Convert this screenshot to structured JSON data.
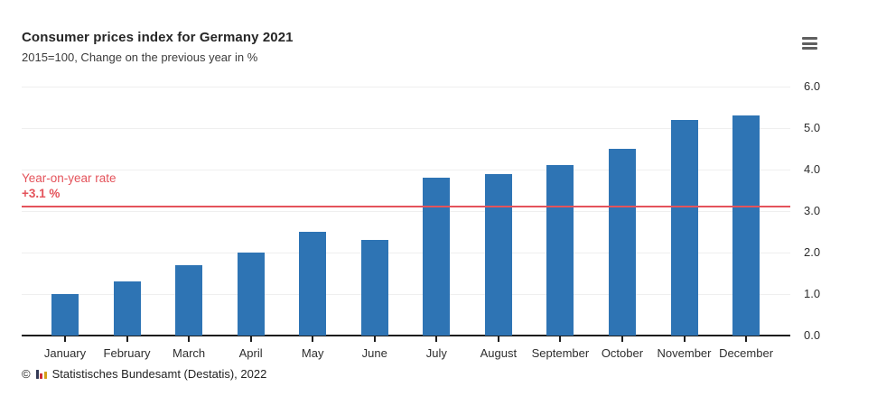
{
  "header": {
    "title": "Consumer prices index for Germany 2021",
    "subtitle": "2015=100, Change on the previous year in %",
    "menu_icon": "hamburger-menu-icon"
  },
  "chart_data": {
    "type": "bar",
    "title": "Consumer prices index for Germany 2021",
    "subtitle": "2015=100, Change on the previous year in %",
    "categories": [
      "January",
      "February",
      "March",
      "April",
      "May",
      "June",
      "July",
      "August",
      "September",
      "October",
      "November",
      "December"
    ],
    "values": [
      1.0,
      1.3,
      1.7,
      2.0,
      2.5,
      2.3,
      3.8,
      3.9,
      4.1,
      4.5,
      5.2,
      5.3
    ],
    "xlabel": "",
    "ylabel": "",
    "ylim": [
      0,
      6.0
    ],
    "ytick_labels": [
      "0.0",
      "1.0",
      "2.0",
      "3.0",
      "4.0",
      "5.0",
      "6.0"
    ],
    "grid": true,
    "legend": "none",
    "bar_color": "#2e74b4",
    "axis_color": "#1d1d1d",
    "gridline_color": "#efefef",
    "reference_line": {
      "value": 3.1,
      "label_line1": "Year-on-year rate",
      "label_line2": "+3.1 %",
      "color": "#e4535b"
    }
  },
  "footer": {
    "copyright_symbol": "©",
    "logo": "destatis-bar-chart-logo",
    "source_text": "Statistisches Bundesamt (Destatis), 2022"
  }
}
